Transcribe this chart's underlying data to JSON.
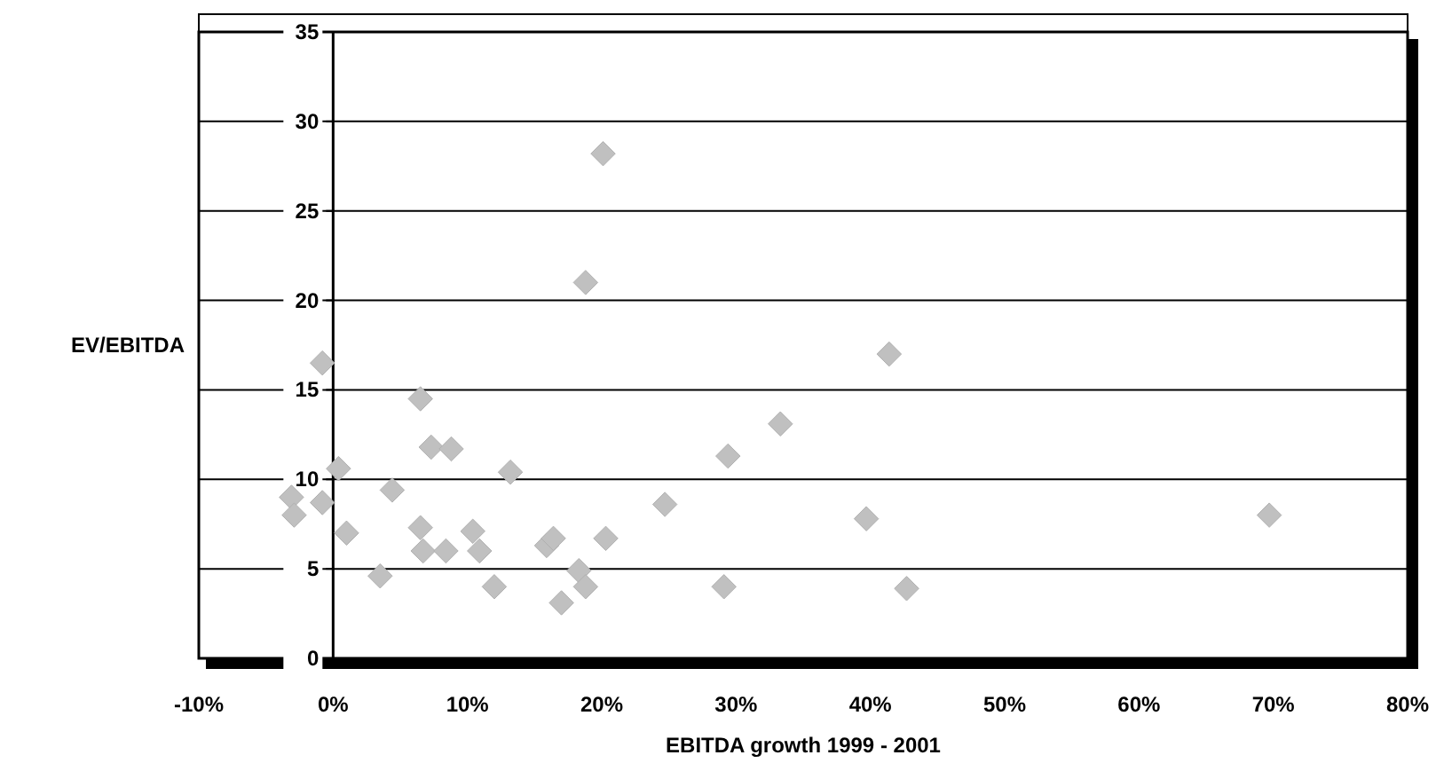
{
  "chart_data": {
    "type": "scatter",
    "xlabel": "EBITDA growth 1999 - 2001",
    "ylabel": "EV/EBITDA",
    "x": [
      -0.8,
      6.5,
      7.3,
      8.8,
      0.4,
      13.2,
      -3.1,
      -2.9,
      -0.8,
      4.4,
      1.0,
      6.5,
      6.7,
      8.4,
      10.4,
      10.9,
      3.5,
      12.0,
      15.9,
      16.4,
      20.3,
      18.3,
      18.8,
      17.0,
      24.7,
      29.4,
      29.1,
      33.3,
      20.1,
      18.8,
      41.4,
      39.7,
      69.7,
      42.7
    ],
    "values": [
      16.5,
      14.5,
      11.8,
      11.7,
      10.6,
      10.4,
      9.0,
      8.0,
      8.7,
      9.4,
      7.0,
      7.3,
      6.0,
      6.0,
      7.1,
      6.0,
      4.6,
      4.0,
      6.3,
      6.7,
      6.7,
      4.9,
      4.0,
      3.1,
      8.6,
      11.3,
      4.0,
      13.1,
      28.2,
      21.0,
      17.0,
      7.8,
      8.0,
      3.9
    ],
    "color": "#c0c0c0",
    "marker": "diamond",
    "grid": "y",
    "xlim": [
      -10,
      80
    ],
    "xticks": [
      {
        "value": -10,
        "label": "-10%"
      },
      {
        "value": 0,
        "label": "0%"
      },
      {
        "value": 10,
        "label": "10%"
      },
      {
        "value": 20,
        "label": "20%"
      },
      {
        "value": 30,
        "label": "30%"
      },
      {
        "value": 40,
        "label": "40%"
      },
      {
        "value": 50,
        "label": "50%"
      },
      {
        "value": 60,
        "label": "60%"
      },
      {
        "value": 70,
        "label": "70%"
      },
      {
        "value": 80,
        "label": "80%"
      }
    ],
    "ylim": [
      0,
      35
    ],
    "yticks": [
      0,
      5,
      10,
      15,
      20,
      25,
      30,
      35
    ]
  }
}
